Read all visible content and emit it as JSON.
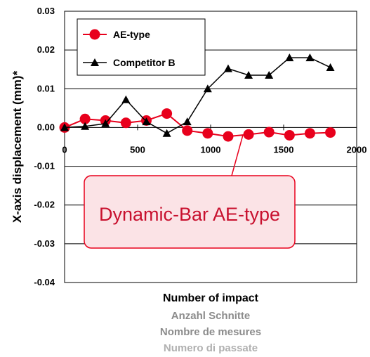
{
  "chart_data": {
    "type": "line",
    "title": "",
    "xlabel": "Number of impact",
    "xlabel_translations": [
      "Anzahl Schnitte",
      "Nombre de mesures",
      "Numero di passate"
    ],
    "ylabel": "X-axis displacement (mm)*",
    "xlim": [
      0,
      2000
    ],
    "ylim": [
      -0.04,
      0.03
    ],
    "grid": true,
    "legend_position": "top-left",
    "x_ticks": [
      "0",
      "500",
      "1000",
      "1500",
      "2000"
    ],
    "y_ticks": [
      "0.03",
      "0.02",
      "0.01",
      "0.00",
      "-0.01",
      "-0.02",
      "-0.03",
      "-0.04"
    ],
    "x": [
      0,
      140,
      280,
      420,
      560,
      700,
      840,
      980,
      1120,
      1260,
      1400,
      1540,
      1680,
      1820
    ],
    "series": [
      {
        "name": "AE-type",
        "color": "#e8001c",
        "marker": "circle",
        "values": [
          0.0,
          0.0022,
          0.0018,
          0.0012,
          0.0018,
          0.0036,
          -0.0008,
          -0.0015,
          -0.0023,
          -0.0018,
          -0.0012,
          -0.002,
          -0.0015,
          -0.0013
        ]
      },
      {
        "name": "Competitor B",
        "color": "#000000",
        "marker": "triangle",
        "values": [
          0.0,
          0.0003,
          0.001,
          0.0072,
          0.0015,
          -0.0015,
          0.0015,
          0.01,
          0.0152,
          0.0135,
          0.0135,
          0.018,
          0.018,
          0.0155
        ]
      }
    ],
    "annotations": [
      {
        "text": "Dynamic-Bar AE-type",
        "target_series": "AE-type",
        "target_x": 980
      }
    ]
  }
}
